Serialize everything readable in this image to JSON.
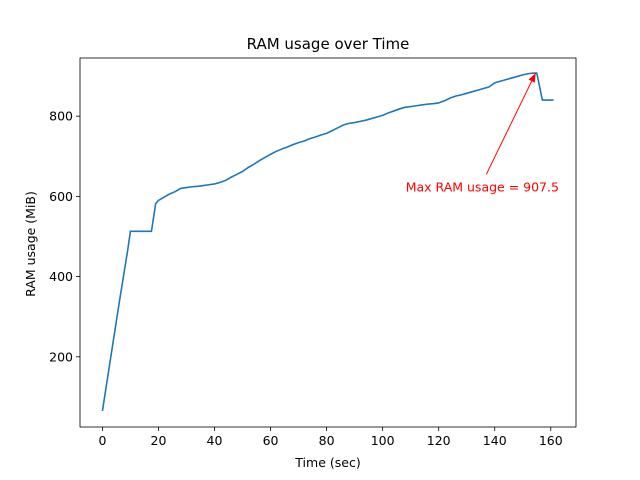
{
  "chart_data": {
    "type": "line",
    "title": "RAM usage over Time",
    "xlabel": "Time (sec)",
    "ylabel": "RAM usage (MiB)",
    "xlim": [
      -8,
      169
    ],
    "ylim": [
      25,
      945
    ],
    "xticks": [
      0,
      20,
      40,
      60,
      80,
      100,
      120,
      140,
      160
    ],
    "yticks": [
      200,
      400,
      600,
      800
    ],
    "grid": false,
    "line_color": "#1f77b4",
    "series": [
      {
        "x": [
          0,
          3,
          6,
          9,
          10,
          12,
          14,
          16,
          17.5,
          19,
          20,
          22,
          24,
          26,
          28,
          30,
          32,
          34,
          36,
          38,
          40,
          42,
          44,
          46,
          48,
          50,
          52,
          54,
          56,
          58,
          60,
          62,
          64,
          66,
          68,
          70,
          72,
          74,
          76,
          78,
          80,
          82,
          84,
          86,
          88,
          90,
          92,
          94,
          96,
          98,
          100,
          102,
          104,
          106,
          108,
          110,
          112,
          114,
          116,
          118,
          120,
          122,
          124,
          126,
          128,
          130,
          132,
          134,
          136,
          138,
          140,
          142,
          144,
          146,
          148,
          150,
          152,
          154,
          155,
          157,
          159,
          161
        ],
        "y": [
          65,
          200,
          335,
          465,
          513,
          513,
          513,
          513,
          513,
          582,
          590,
          598,
          606,
          612,
          620,
          622,
          624,
          625,
          627,
          629,
          631,
          635,
          640,
          648,
          655,
          662,
          672,
          680,
          689,
          697,
          705,
          712,
          718,
          723,
          729,
          734,
          738,
          744,
          748,
          753,
          757,
          764,
          771,
          778,
          782,
          784,
          787,
          790,
          794,
          798,
          802,
          808,
          813,
          818,
          822,
          824,
          826,
          828,
          830,
          831,
          833,
          838,
          845,
          850,
          853,
          857,
          861,
          865,
          869,
          873,
          883,
          887,
          891,
          895,
          899,
          903,
          906,
          907.5,
          907.5,
          840,
          840,
          840
        ]
      }
    ],
    "annotation": {
      "text": "Max RAM usage = 907.5",
      "color": "#ff0000",
      "point": [
        154.6,
        907.5
      ],
      "text_position": [
        137,
        650
      ]
    }
  }
}
